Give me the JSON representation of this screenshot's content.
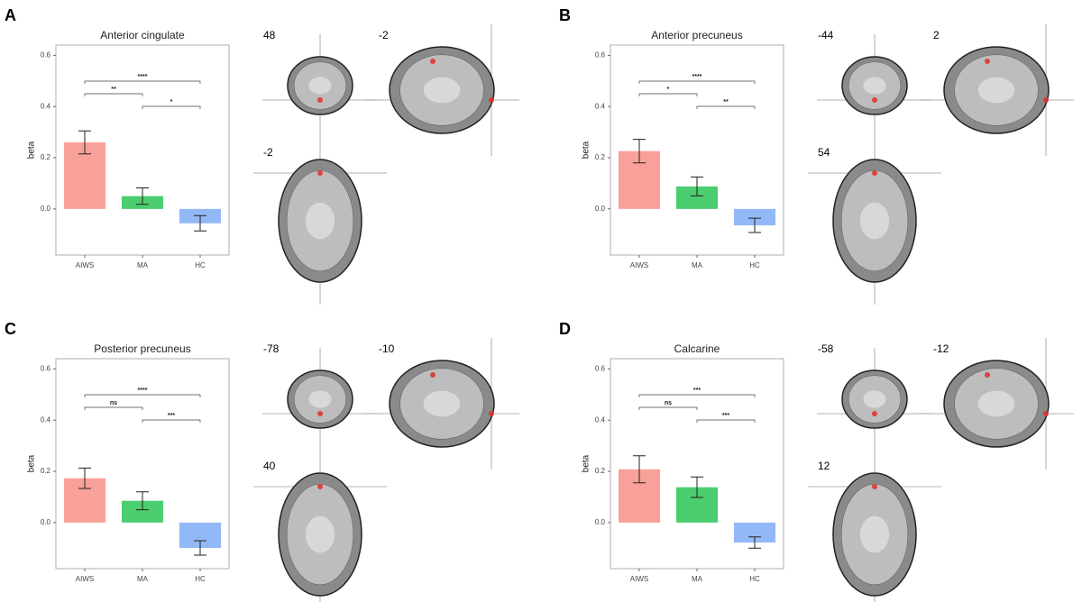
{
  "chart_data": [
    {
      "type": "bar",
      "panel": "A",
      "title": "Anterior cingulate",
      "ylabel": "beta",
      "categories": [
        "AIWS",
        "MA",
        "HC"
      ],
      "values": [
        0.26,
        0.05,
        -0.056
      ],
      "errors": [
        0.045,
        0.032,
        0.03
      ],
      "colors": [
        "#f8a09a",
        "#4ccd6f",
        "#93b8f7"
      ],
      "ylim": [
        -0.18,
        0.64
      ],
      "yticks": [
        {
          "value": 0,
          "label": "0.0"
        },
        0.2,
        0.4,
        0.6
      ],
      "comparisons": [
        {
          "groups": [
            "AIWS",
            "HC"
          ],
          "label": "****"
        },
        {
          "groups": [
            "AIWS",
            "MA"
          ],
          "label": "**"
        },
        {
          "groups": [
            "MA",
            "HC"
          ],
          "label": "*"
        }
      ],
      "slices": [
        48,
        -2,
        -2
      ]
    },
    {
      "type": "bar",
      "panel": "B",
      "title": "Anterior precuneus",
      "ylabel": "beta",
      "categories": [
        "AIWS",
        "MA",
        "HC"
      ],
      "values": [
        0.226,
        0.088,
        -0.064
      ],
      "errors": [
        0.046,
        0.037,
        0.028
      ],
      "colors": [
        "#f8a09a",
        "#4ccd6f",
        "#93b8f7"
      ],
      "ylim": [
        -0.18,
        0.64
      ],
      "yticks": [
        {
          "value": 0,
          "label": "0.0"
        },
        0.2,
        0.4,
        0.6
      ],
      "comparisons": [
        {
          "groups": [
            "AIWS",
            "HC"
          ],
          "label": "****"
        },
        {
          "groups": [
            "AIWS",
            "MA"
          ],
          "label": "*"
        },
        {
          "groups": [
            "MA",
            "HC"
          ],
          "label": "**"
        }
      ],
      "slices": [
        -44,
        2,
        54
      ]
    },
    {
      "type": "bar",
      "panel": "C",
      "title": "Posterior precuneus",
      "ylabel": "beta",
      "categories": [
        "AIWS",
        "MA",
        "HC"
      ],
      "values": [
        0.173,
        0.085,
        -0.099
      ],
      "errors": [
        0.04,
        0.035,
        0.028
      ],
      "colors": [
        "#f8a09a",
        "#4ccd6f",
        "#93b8f7"
      ],
      "ylim": [
        -0.18,
        0.64
      ],
      "yticks": [
        {
          "value": 0,
          "label": "0.0"
        },
        0.2,
        0.4,
        0.6
      ],
      "comparisons": [
        {
          "groups": [
            "AIWS",
            "HC"
          ],
          "label": "****"
        },
        {
          "groups": [
            "AIWS",
            "MA"
          ],
          "label": "ns"
        },
        {
          "groups": [
            "MA",
            "HC"
          ],
          "label": "***"
        }
      ],
      "slices": [
        -78,
        -10,
        40
      ]
    },
    {
      "type": "bar",
      "panel": "D",
      "title": "Calcarine",
      "ylabel": "beta",
      "categories": [
        "AIWS",
        "MA",
        "HC"
      ],
      "values": [
        0.208,
        0.138,
        -0.078
      ],
      "errors": [
        0.053,
        0.04,
        0.022
      ],
      "colors": [
        "#f8a09a",
        "#4ccd6f",
        "#93b8f7"
      ],
      "ylim": [
        -0.18,
        0.64
      ],
      "yticks": [
        {
          "value": 0,
          "label": "0.0"
        },
        0.2,
        0.4,
        0.6
      ],
      "comparisons": [
        {
          "groups": [
            "AIWS",
            "HC"
          ],
          "label": "***"
        },
        {
          "groups": [
            "AIWS",
            "MA"
          ],
          "label": "ns"
        },
        {
          "groups": [
            "MA",
            "HC"
          ],
          "label": "***"
        }
      ],
      "slices": [
        -58,
        -12,
        12
      ]
    }
  ]
}
